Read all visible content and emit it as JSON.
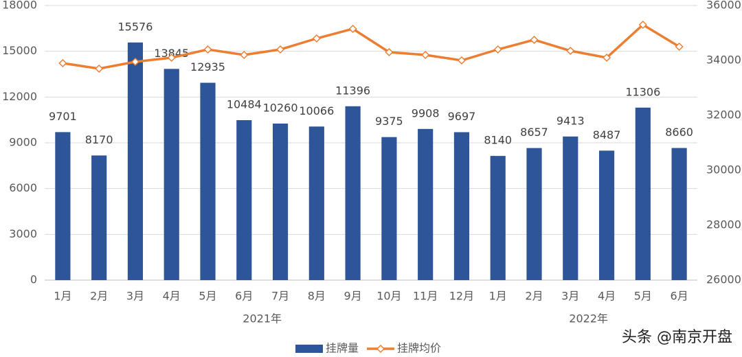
{
  "chart_data": {
    "type": "bar_line",
    "categories": [
      "1月",
      "2月",
      "3月",
      "4月",
      "5月",
      "6月",
      "7月",
      "8月",
      "9月",
      "10月",
      "11月",
      "12月",
      "1月",
      "2月",
      "3月",
      "4月",
      "5月",
      "6月"
    ],
    "x_groups": [
      "2021年",
      "2022年"
    ],
    "series": [
      {
        "name": "挂牌量",
        "color": "#2e5597",
        "type": "bar",
        "values": [
          9701,
          8170,
          15576,
          13845,
          12935,
          10484,
          10260,
          10066,
          11396,
          9375,
          9908,
          9697,
          8140,
          8657,
          9413,
          8487,
          11306,
          8660
        ]
      },
      {
        "name": "挂牌均价",
        "color": "#ed7d31",
        "type": "line",
        "axis": "y2",
        "values": [
          33900,
          33700,
          33950,
          34100,
          34400,
          34200,
          34400,
          34800,
          35150,
          34300,
          34200,
          34000,
          34400,
          34750,
          34350,
          34100,
          35300,
          34500
        ]
      }
    ],
    "ylim": [
      0,
      18000
    ],
    "yticks": [
      0,
      3000,
      6000,
      9000,
      12000,
      15000,
      18000
    ],
    "y2lim": [
      26000,
      36000
    ],
    "y2ticks": [
      26000,
      28000,
      30000,
      32000,
      34000,
      36000
    ],
    "grid": true,
    "legend": "bottom",
    "watermark": "头条 @南京开盘"
  }
}
